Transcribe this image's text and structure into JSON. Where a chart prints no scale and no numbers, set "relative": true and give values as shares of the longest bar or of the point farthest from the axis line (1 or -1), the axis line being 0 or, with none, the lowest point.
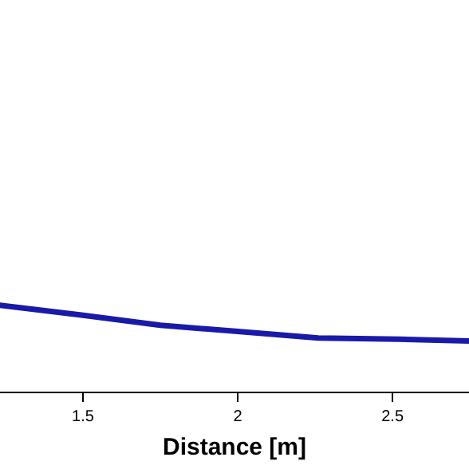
{
  "chart_data": {
    "type": "line",
    "relative": true,
    "xlabel": "Distance [m]",
    "xlim": [
      1.232,
      2.747
    ],
    "xticks": [
      1.5,
      2,
      2.5
    ],
    "tick_labels": "x",
    "grid": false,
    "legend": false,
    "marker": "none",
    "line_style": "solid",
    "series": [
      {
        "color": "#1a1aa8",
        "x": [
          1.232,
          1.49,
          1.75,
          2.0,
          2.26,
          2.52,
          2.747
        ],
        "values": [
          1,
          0.89,
          0.77,
          0.7,
          0.625,
          0.61,
          0.59
        ]
      }
    ]
  }
}
